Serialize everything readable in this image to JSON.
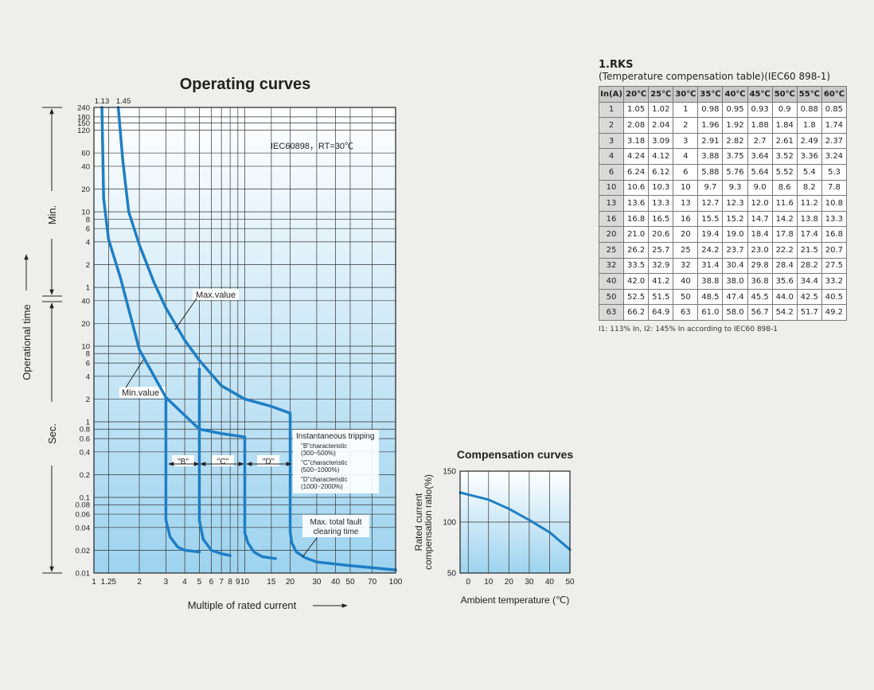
{
  "chart_data": [
    {
      "type": "line",
      "title": "Operating curves",
      "x_label": "Multiple of rated current",
      "y_label": "Operational time",
      "y_sections": [
        "Min.",
        "Sec."
      ],
      "xscale": "log",
      "yscale": "log",
      "grid": true,
      "xlim": [
        1,
        100
      ],
      "ylim": [
        0.01,
        14400
      ],
      "xticks": [
        1,
        1.25,
        2,
        3,
        4,
        5,
        6,
        7,
        8,
        9,
        10,
        15,
        20,
        30,
        40,
        50,
        70,
        100
      ],
      "yticks": [
        {
          "value": 14400,
          "label": "240"
        },
        {
          "value": 10800,
          "label": "180"
        },
        {
          "value": 9000,
          "label": "150"
        },
        {
          "value": 7200,
          "label": "120"
        },
        {
          "value": 3600,
          "label": "60"
        },
        {
          "value": 2400,
          "label": "40"
        },
        {
          "value": 1200,
          "label": "20"
        },
        {
          "value": 600,
          "label": "10"
        },
        {
          "value": 480,
          "label": "8"
        },
        {
          "value": 360,
          "label": "6"
        },
        {
          "value": 240,
          "label": "4"
        },
        {
          "value": 120,
          "label": "2"
        },
        {
          "value": 60,
          "label": "1"
        },
        40,
        20,
        10,
        8,
        6,
        4,
        2,
        1,
        0.8,
        0.6,
        0.4,
        0.2,
        0.1,
        0.08,
        0.06,
        0.04,
        0.02,
        0.01
      ],
      "annotations": [
        "1.13",
        "1.45",
        "IEC60898，RT=30℃",
        "Max.value",
        "Min.value",
        "Instantaneous tripping",
        "\"B\"characteristic",
        "(300~500%)",
        "\"C\"characteristic",
        "(500~1000%)",
        "\"D\"characteristic",
        "(1000~2000%)",
        "Max. total fault",
        "clearing time",
        "\"B\"",
        "\"C\"",
        "\"D\""
      ],
      "series": [
        {
          "color": "#1f7ec4",
          "x": [
            1.45,
            1.55,
            1.7,
            2,
            2.5,
            3,
            4,
            5,
            7,
            10,
            15,
            20,
            20,
            20.5,
            22,
            25,
            30,
            50,
            100
          ],
          "values": [
            14400,
            3000,
            600,
            220,
            70,
            32,
            12,
            6.5,
            3,
            2,
            1.6,
            1.3,
            0.035,
            0.025,
            0.019,
            0.016,
            0.014,
            0.0125,
            0.011
          ]
        },
        {
          "color": "#1f7ec4",
          "x": [
            1.13,
            1.16,
            1.25,
            1.5,
            2,
            3,
            5,
            7,
            10,
            10,
            10.5,
            11.5,
            13,
            16
          ],
          "values": [
            14400,
            900,
            260,
            80,
            9,
            2.1,
            0.8,
            0.7,
            0.63,
            0.034,
            0.025,
            0.019,
            0.0165,
            0.0155
          ]
        },
        {
          "color": "#1f7ec4",
          "x": [
            3,
            3,
            3.2,
            3.6,
            4,
            5
          ],
          "values": [
            2.1,
            0.05,
            0.03,
            0.022,
            0.02,
            0.019
          ]
        },
        {
          "color": "#1f7ec4",
          "x": [
            5,
            5,
            5.3,
            6,
            7,
            8
          ],
          "values": [
            5,
            0.05,
            0.028,
            0.02,
            0.018,
            0.017
          ]
        }
      ]
    },
    {
      "type": "line",
      "title": "Compensation curves",
      "x_label": "Ambient temperature (℃)",
      "y_label": [
        "Rated current",
        "compensation ratio(%)"
      ],
      "grid": true,
      "xlim": [
        -4,
        50
      ],
      "ylim": [
        50,
        150
      ],
      "xticks": [
        0,
        10,
        20,
        30,
        40,
        50
      ],
      "yticks": [
        50,
        100,
        150
      ],
      "series": [
        {
          "color": "#1f7ec4",
          "x": [
            -4,
            0,
            10,
            20,
            30,
            40,
            50
          ],
          "values": [
            129,
            127,
            122,
            113,
            102,
            90,
            73
          ]
        }
      ]
    }
  ],
  "table": {
    "title": "1.RKS",
    "subtitle": "(Temperature compensation table)(IEC60 898-1)",
    "columns": [
      "In(A)",
      "20℃",
      "25℃",
      "30℃",
      "35℃",
      "40℃",
      "45℃",
      "50℃",
      "55℃",
      "60℃"
    ],
    "rows": [
      [
        "1",
        "1.05",
        "1.02",
        "1",
        "0.98",
        "0.95",
        "0.93",
        "0.9",
        "0.88",
        "0.85"
      ],
      [
        "2",
        "2.08",
        "2.04",
        "2",
        "1.96",
        "1.92",
        "1.88",
        "1.84",
        "1.8",
        "1.74"
      ],
      [
        "3",
        "3.18",
        "3.09",
        "3",
        "2.91",
        "2.82",
        "2.7",
        "2.61",
        "2.49",
        "2.37"
      ],
      [
        "4",
        "4.24",
        "4.12",
        "4",
        "3.88",
        "3.75",
        "3.64",
        "3.52",
        "3.36",
        "3.24"
      ],
      [
        "6",
        "6.24",
        "6.12",
        "6",
        "5.88",
        "5.76",
        "5.64",
        "5.52",
        "5.4",
        "5.3"
      ],
      [
        "10",
        "10.6",
        "10.3",
        "10",
        "9.7",
        "9.3",
        "9.0",
        "8.6",
        "8.2",
        "7.8"
      ],
      [
        "13",
        "13.6",
        "13.3",
        "13",
        "12.7",
        "12.3",
        "12.0",
        "11.6",
        "11.2",
        "10.8"
      ],
      [
        "16",
        "16.8",
        "16.5",
        "16",
        "15.5",
        "15.2",
        "14.7",
        "14.2",
        "13.8",
        "13.3"
      ],
      [
        "20",
        "21.0",
        "20.6",
        "20",
        "19.4",
        "19.0",
        "18.4",
        "17.8",
        "17.4",
        "16.8"
      ],
      [
        "25",
        "26.2",
        "25.7",
        "25",
        "24.2",
        "23.7",
        "23.0",
        "22.2",
        "21.5",
        "20.7"
      ],
      [
        "32",
        "33.5",
        "32.9",
        "32",
        "31.4",
        "30.4",
        "29.8",
        "28.4",
        "28.2",
        "27.5"
      ],
      [
        "40",
        "42.0",
        "41.2",
        "40",
        "38.8",
        "38.0",
        "36.8",
        "35.6",
        "34.4",
        "33.2"
      ],
      [
        "50",
        "52.5",
        "51.5",
        "50",
        "48.5",
        "47.4",
        "45.5",
        "44.0",
        "42.5",
        "40.5"
      ],
      [
        "63",
        "66.2",
        "64.9",
        "63",
        "61.0",
        "58.0",
        "56.7",
        "54.2",
        "51.7",
        "49.2"
      ]
    ],
    "footnote": "I1: 113% In, I2: 145% In according to IEC60 898-1"
  }
}
